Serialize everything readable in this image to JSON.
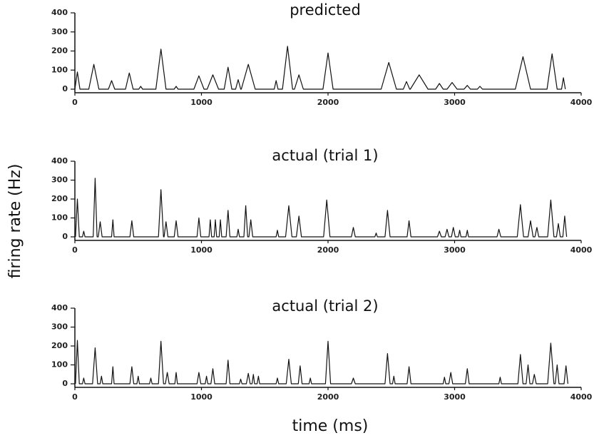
{
  "chart_data": [
    {
      "type": "line",
      "title": "predicted",
      "ylabel": "firing rate (Hz)",
      "color": "#111111",
      "xlim": [
        0,
        4000
      ],
      "xticks": [
        0,
        1000,
        2000,
        3000,
        4000
      ],
      "ylim": [
        0,
        400
      ],
      "yticks": [
        0,
        100,
        200,
        300,
        400
      ],
      "x": [
        0,
        20,
        40,
        110,
        150,
        190,
        265,
        290,
        315,
        400,
        430,
        460,
        505,
        520,
        535,
        640,
        680,
        720,
        785,
        800,
        815,
        940,
        980,
        1020,
        1045,
        1090,
        1135,
        1180,
        1210,
        1240,
        1270,
        1290,
        1310,
        1315,
        1370,
        1425,
        1575,
        1590,
        1605,
        1640,
        1680,
        1720,
        1735,
        1770,
        1805,
        1960,
        2000,
        2040,
        2420,
        2480,
        2540,
        2595,
        2620,
        2645,
        2650,
        2720,
        2790,
        2850,
        2880,
        2910,
        2940,
        2980,
        3020,
        3075,
        3100,
        3125,
        3180,
        3200,
        3220,
        3480,
        3540,
        3600,
        3730,
        3770,
        3810,
        3845,
        3860,
        3875
      ],
      "values": [
        0,
        90,
        0,
        0,
        130,
        0,
        0,
        45,
        0,
        0,
        85,
        0,
        0,
        15,
        0,
        0,
        210,
        0,
        0,
        15,
        0,
        0,
        70,
        0,
        0,
        75,
        0,
        0,
        115,
        0,
        0,
        50,
        0,
        0,
        130,
        0,
        0,
        45,
        0,
        0,
        225,
        0,
        0,
        75,
        0,
        0,
        190,
        0,
        0,
        140,
        0,
        0,
        40,
        0,
        0,
        75,
        0,
        0,
        30,
        0,
        0,
        35,
        0,
        0,
        20,
        0,
        0,
        15,
        0,
        0,
        170,
        0,
        0,
        185,
        0,
        0,
        60,
        0
      ]
    },
    {
      "type": "line",
      "title": "actual (trial 1)",
      "color": "#111111",
      "xlim": [
        0,
        4000
      ],
      "xticks": [
        0,
        1000,
        2000,
        3000,
        4000
      ],
      "ylim": [
        0,
        400
      ],
      "yticks": [
        0,
        100,
        200,
        300,
        400
      ],
      "x": [
        5,
        20,
        35,
        60,
        70,
        80,
        145,
        160,
        175,
        185,
        200,
        215,
        290,
        300,
        310,
        435,
        450,
        465,
        660,
        680,
        700,
        705,
        720,
        735,
        785,
        800,
        815,
        965,
        980,
        995,
        1060,
        1070,
        1080,
        1100,
        1110,
        1120,
        1140,
        1150,
        1160,
        1195,
        1210,
        1225,
        1280,
        1290,
        1300,
        1335,
        1350,
        1365,
        1375,
        1390,
        1405,
        1590,
        1600,
        1610,
        1665,
        1690,
        1715,
        1750,
        1770,
        1790,
        1965,
        1990,
        2015,
        2185,
        2200,
        2215,
        2370,
        2380,
        2390,
        2450,
        2470,
        2490,
        2625,
        2640,
        2655,
        2865,
        2880,
        2895,
        2925,
        2940,
        2955,
        2975,
        2990,
        3005,
        3030,
        3040,
        3050,
        3090,
        3100,
        3110,
        3335,
        3350,
        3365,
        3495,
        3520,
        3545,
        3580,
        3600,
        3620,
        3635,
        3650,
        3665,
        3735,
        3760,
        3785,
        3805,
        3820,
        3835,
        3855,
        3870,
        3885
      ],
      "values": [
        0,
        200,
        0,
        0,
        30,
        0,
        0,
        310,
        0,
        0,
        80,
        0,
        0,
        90,
        0,
        0,
        85,
        0,
        0,
        250,
        0,
        0,
        80,
        0,
        0,
        85,
        0,
        0,
        100,
        0,
        0,
        90,
        0,
        0,
        90,
        0,
        0,
        90,
        0,
        0,
        140,
        0,
        0,
        40,
        0,
        0,
        165,
        0,
        0,
        90,
        0,
        0,
        35,
        0,
        0,
        165,
        0,
        0,
        110,
        0,
        0,
        195,
        0,
        0,
        50,
        0,
        0,
        20,
        0,
        0,
        140,
        0,
        0,
        85,
        0,
        0,
        30,
        0,
        0,
        40,
        0,
        0,
        50,
        0,
        0,
        35,
        0,
        0,
        35,
        0,
        0,
        40,
        0,
        0,
        170,
        0,
        0,
        85,
        0,
        0,
        50,
        0,
        0,
        195,
        0,
        0,
        70,
        0,
        0,
        110,
        0
      ]
    },
    {
      "type": "line",
      "title": "actual (trial 2)",
      "xlabel": "time (ms)",
      "color": "#111111",
      "xlim": [
        0,
        4000
      ],
      "xticks": [
        0,
        1000,
        2000,
        3000,
        4000
      ],
      "ylim": [
        0,
        400
      ],
      "yticks": [
        0,
        100,
        200,
        300,
        400
      ],
      "x": [
        5,
        20,
        35,
        60,
        70,
        80,
        140,
        160,
        180,
        200,
        210,
        220,
        290,
        300,
        310,
        435,
        450,
        465,
        490,
        500,
        510,
        590,
        600,
        610,
        660,
        680,
        700,
        715,
        730,
        745,
        790,
        800,
        810,
        965,
        980,
        995,
        1030,
        1040,
        1050,
        1075,
        1090,
        1105,
        1195,
        1210,
        1225,
        1300,
        1310,
        1320,
        1355,
        1370,
        1385,
        1400,
        1410,
        1420,
        1440,
        1450,
        1460,
        1590,
        1600,
        1610,
        1670,
        1690,
        1710,
        1765,
        1780,
        1795,
        1850,
        1860,
        1870,
        1980,
        2000,
        2020,
        2185,
        2200,
        2215,
        2450,
        2470,
        2490,
        2510,
        2520,
        2530,
        2625,
        2640,
        2655,
        2910,
        2920,
        2930,
        2955,
        2970,
        2985,
        3085,
        3100,
        3115,
        3350,
        3360,
        3370,
        3500,
        3520,
        3540,
        3565,
        3580,
        3595,
        3615,
        3630,
        3645,
        3735,
        3760,
        3785,
        3795,
        3810,
        3825,
        3865,
        3880,
        3895
      ],
      "values": [
        0,
        230,
        0,
        0,
        30,
        0,
        0,
        190,
        0,
        0,
        40,
        0,
        0,
        90,
        0,
        0,
        90,
        0,
        0,
        40,
        0,
        0,
        30,
        0,
        0,
        225,
        0,
        0,
        60,
        0,
        0,
        60,
        0,
        0,
        60,
        0,
        0,
        40,
        0,
        0,
        80,
        0,
        0,
        125,
        0,
        0,
        25,
        0,
        0,
        55,
        0,
        0,
        50,
        0,
        0,
        40,
        0,
        0,
        30,
        0,
        0,
        130,
        0,
        0,
        95,
        0,
        0,
        30,
        0,
        0,
        225,
        0,
        0,
        30,
        0,
        0,
        160,
        0,
        0,
        40,
        0,
        0,
        90,
        0,
        0,
        35,
        0,
        0,
        60,
        0,
        0,
        80,
        0,
        0,
        35,
        0,
        0,
        155,
        0,
        0,
        100,
        0,
        0,
        50,
        0,
        0,
        215,
        0,
        0,
        100,
        0,
        0,
        95,
        0
      ]
    }
  ]
}
